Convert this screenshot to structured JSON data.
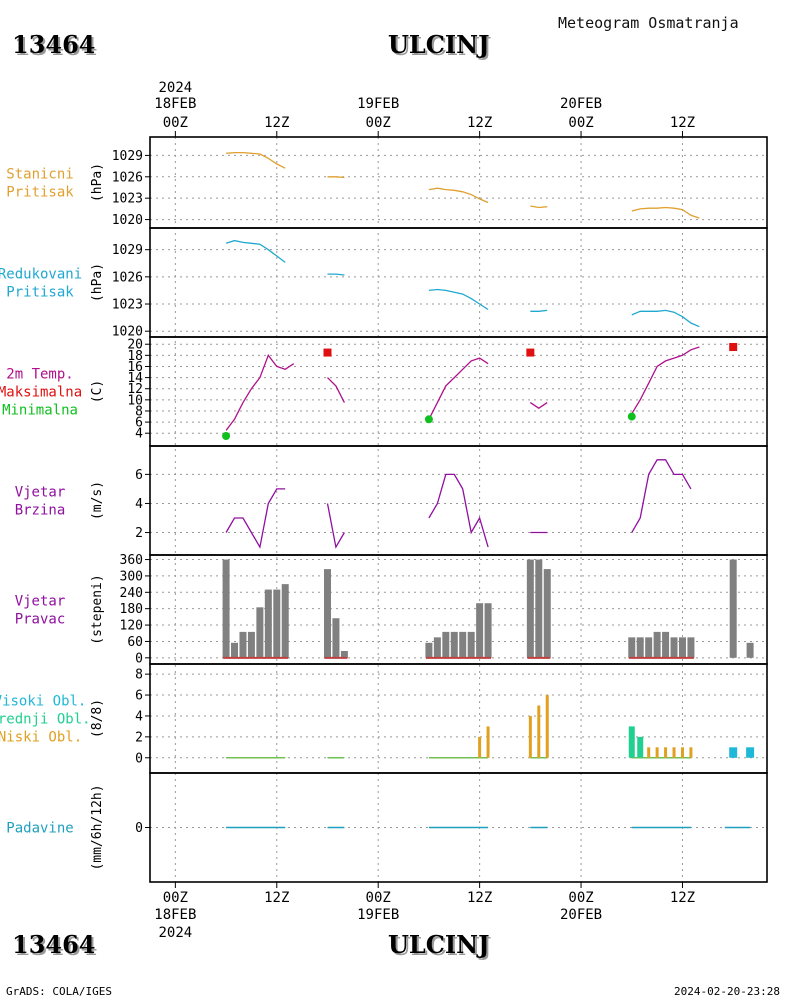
{
  "header": {
    "station_id": "13464",
    "city": "ULCINJ",
    "title": "Meteogram Osmatranja"
  },
  "footer": {
    "source": "GrADS: COLA/IGES",
    "timestamp": "2024-02-20-23:28"
  },
  "colors": {
    "pressure_station": "#e0a030",
    "pressure_reduced": "#20a8d0",
    "temp": "#b0108a",
    "tmax": "#e01010",
    "tmin": "#10c020",
    "wind": "#9010a0",
    "wind_dir_bar": "#808080",
    "wind_dir_base": "#c04040",
    "cloud_high": "#20b8d8",
    "cloud_mid": "#20d090",
    "cloud_low": "#e0a020",
    "precip": "#20a0c0"
  },
  "chart_data": {
    "type": "line",
    "time_axis": {
      "top_year": "2024",
      "top_dates": [
        {
          "label": "18FEB",
          "h": 0
        },
        {
          "label": "19FEB",
          "h": 24
        },
        {
          "label": "20FEB",
          "h": 48
        }
      ],
      "ticks": [
        {
          "label": "00Z",
          "h": 0
        },
        {
          "label": "12Z",
          "h": 12
        },
        {
          "label": "00Z",
          "h": 24
        },
        {
          "label": "12Z",
          "h": 36
        },
        {
          "label": "00Z",
          "h": 48
        },
        {
          "label": "12Z",
          "h": 60
        }
      ],
      "bottom_dates": [
        {
          "label": "18FEB",
          "h": 0
        },
        {
          "label": "19FEB",
          "h": 24
        },
        {
          "label": "20FEB",
          "h": 48
        }
      ],
      "bottom_year": "2024",
      "xlim": [
        -3,
        70
      ]
    },
    "panels": [
      {
        "id": "station_pressure",
        "labels": [
          "Stanicni",
          "Pritisak"
        ],
        "label_color": "pressure_station",
        "ylabel": "(hPa)",
        "yticks": [
          "1020",
          "1023",
          "1026",
          "1029"
        ],
        "ylim": [
          1019.8,
          1030.6
        ],
        "series": [
          {
            "color": "pressure_station",
            "segments": [
              [
                [
                  6,
                  1029.3
                ],
                [
                  7,
                  1029.4
                ],
                [
                  8,
                  1029.4
                ],
                [
                  9,
                  1029.3
                ],
                [
                  10,
                  1029.2
                ],
                [
                  11,
                  1028.6
                ],
                [
                  12,
                  1027.8
                ],
                [
                  13,
                  1027.2
                ]
              ],
              [
                [
                  18,
                  1026.0
                ],
                [
                  19,
                  1026.0
                ],
                [
                  20,
                  1025.9
                ]
              ],
              [
                [
                  30,
                  1024.2
                ],
                [
                  31,
                  1024.4
                ],
                [
                  32,
                  1024.2
                ],
                [
                  33,
                  1024.1
                ],
                [
                  34,
                  1023.9
                ],
                [
                  35,
                  1023.5
                ],
                [
                  36,
                  1022.9
                ],
                [
                  37,
                  1022.4
                ]
              ],
              [
                [
                  42,
                  1021.9
                ],
                [
                  43,
                  1021.7
                ],
                [
                  44,
                  1021.8
                ]
              ],
              [
                [
                  54,
                  1021.2
                ],
                [
                  55,
                  1021.5
                ],
                [
                  56,
                  1021.6
                ],
                [
                  57,
                  1021.6
                ],
                [
                  58,
                  1021.7
                ],
                [
                  59,
                  1021.6
                ],
                [
                  60,
                  1021.4
                ],
                [
                  61,
                  1020.6
                ],
                [
                  62,
                  1020.2
                ]
              ]
            ]
          }
        ]
      },
      {
        "id": "reduced_pressure",
        "labels": [
          "Redukovani",
          "Pritisak"
        ],
        "label_color": "pressure_reduced",
        "ylabel": "(hPa)",
        "yticks": [
          "1020",
          "1023",
          "1026",
          "1029"
        ],
        "ylim": [
          1019.8,
          1030.4
        ],
        "series": [
          {
            "color": "pressure_reduced",
            "segments": [
              [
                [
                  6,
                  1029.7
                ],
                [
                  7,
                  1030.0
                ],
                [
                  8,
                  1029.8
                ],
                [
                  9,
                  1029.7
                ],
                [
                  10,
                  1029.6
                ],
                [
                  11,
                  1029.0
                ],
                [
                  12,
                  1028.3
                ],
                [
                  13,
                  1027.6
                ]
              ],
              [
                [
                  18,
                  1026.3
                ],
                [
                  19,
                  1026.3
                ],
                [
                  20,
                  1026.2
                ]
              ],
              [
                [
                  30,
                  1024.5
                ],
                [
                  31,
                  1024.6
                ],
                [
                  32,
                  1024.5
                ],
                [
                  33,
                  1024.3
                ],
                [
                  34,
                  1024.1
                ],
                [
                  35,
                  1023.6
                ],
                [
                  36,
                  1023.0
                ],
                [
                  37,
                  1022.4
                ]
              ],
              [
                [
                  42,
                  1022.2
                ],
                [
                  43,
                  1022.2
                ],
                [
                  44,
                  1022.3
                ]
              ],
              [
                [
                  54,
                  1021.8
                ],
                [
                  55,
                  1022.2
                ],
                [
                  56,
                  1022.2
                ],
                [
                  57,
                  1022.2
                ],
                [
                  58,
                  1022.3
                ],
                [
                  59,
                  1022.1
                ],
                [
                  60,
                  1021.6
                ],
                [
                  61,
                  1020.9
                ],
                [
                  62,
                  1020.5
                ]
              ]
            ]
          }
        ]
      },
      {
        "id": "temperature",
        "labels": [
          "2m Temp.",
          "Maksimalna",
          "Minimalna"
        ],
        "label_colors": [
          "temp",
          "tmax",
          "tmin"
        ],
        "ylabel": "(C)",
        "yticks": [
          "4",
          "6",
          "8",
          "10",
          "12",
          "14",
          "16",
          "18",
          "20"
        ],
        "ylim": [
          2.6,
          20.4
        ],
        "series": [
          {
            "color": "temp",
            "segments": [
              [
                [
                  6,
                  4.5
                ],
                [
                  7,
                  6.5
                ],
                [
                  8,
                  9.5
                ],
                [
                  9,
                  12
                ],
                [
                  10,
                  14
                ],
                [
                  11,
                  18
                ],
                [
                  12,
                  16
                ],
                [
                  13,
                  15.5
                ],
                [
                  14,
                  16.5
                ]
              ],
              [
                [
                  18,
                  14
                ],
                [
                  19,
                  12.5
                ],
                [
                  20,
                  9.5
                ]
              ],
              [
                [
                  30,
                  6.5
                ],
                [
                  31,
                  9.5
                ],
                [
                  32,
                  12.5
                ],
                [
                  33,
                  14
                ],
                [
                  34,
                  15.5
                ],
                [
                  35,
                  17
                ],
                [
                  36,
                  17.5
                ],
                [
                  37,
                  16.5
                ]
              ],
              [
                [
                  42,
                  9.5
                ],
                [
                  43,
                  8.5
                ],
                [
                  44,
                  9.5
                ]
              ],
              [
                [
                  54,
                  7.5
                ],
                [
                  55,
                  10
                ],
                [
                  56,
                  13
                ],
                [
                  57,
                  16
                ],
                [
                  58,
                  17
                ],
                [
                  59,
                  17.5
                ],
                [
                  60,
                  18
                ],
                [
                  61,
                  19
                ],
                [
                  62,
                  19.5
                ]
              ]
            ]
          }
        ],
        "tmax": [
          [
            18,
            18.5
          ],
          [
            42,
            18.5
          ],
          [
            66,
            19.5
          ]
        ],
        "tmin": [
          [
            6,
            3.5
          ],
          [
            30,
            6.5
          ],
          [
            54,
            7
          ]
        ]
      },
      {
        "id": "wind_speed",
        "labels": [
          "Vjetar",
          "Brzina"
        ],
        "label_color": "wind",
        "ylabel": "(m/s)",
        "yticks": [
          "2",
          "4",
          "6"
        ],
        "ylim": [
          0.8,
          7.4
        ],
        "series": [
          {
            "color": "wind",
            "segments": [
              [
                [
                  6,
                  2
                ],
                [
                  7,
                  3
                ],
                [
                  8,
                  3
                ],
                [
                  9,
                  2
                ],
                [
                  10,
                  1
                ],
                [
                  11,
                  4
                ],
                [
                  12,
                  5
                ],
                [
                  13,
                  5
                ]
              ],
              [
                [
                  18,
                  4
                ],
                [
                  19,
                  1
                ],
                [
                  20,
                  2
                ]
              ],
              [
                [
                  30,
                  3
                ],
                [
                  31,
                  4
                ],
                [
                  32,
                  6
                ],
                [
                  33,
                  6
                ],
                [
                  34,
                  5
                ],
                [
                  35,
                  2
                ],
                [
                  36,
                  3
                ],
                [
                  37,
                  1
                ]
              ],
              [
                [
                  42,
                  2
                ],
                [
                  43,
                  2
                ],
                [
                  44,
                  2
                ]
              ],
              [
                [
                  54,
                  2
                ],
                [
                  55,
                  3
                ],
                [
                  56,
                  6
                ],
                [
                  57,
                  7
                ],
                [
                  58,
                  7
                ],
                [
                  59,
                  6
                ],
                [
                  60,
                  6
                ],
                [
                  61,
                  5
                ]
              ]
            ]
          }
        ]
      },
      {
        "id": "wind_direction",
        "labels": [
          "Vjetar",
          "Pravac"
        ],
        "label_color": "wind",
        "ylabel": "(stepeni)",
        "yticks": [
          "0",
          "60",
          "120",
          "180",
          "240",
          "300",
          "360"
        ],
        "ylim": [
          -8,
          362
        ],
        "bars": [
          [
            6,
            360
          ],
          [
            7,
            55
          ],
          [
            8,
            95
          ],
          [
            9,
            95
          ],
          [
            10,
            185
          ],
          [
            11,
            250
          ],
          [
            12,
            250
          ],
          [
            13,
            270
          ],
          [
            18,
            325
          ],
          [
            19,
            145
          ],
          [
            20,
            25
          ],
          [
            30,
            55
          ],
          [
            31,
            75
          ],
          [
            32,
            95
          ],
          [
            33,
            95
          ],
          [
            34,
            95
          ],
          [
            35,
            95
          ],
          [
            36,
            200
          ],
          [
            37,
            200
          ],
          [
            42,
            360
          ],
          [
            43,
            360
          ],
          [
            44,
            325
          ],
          [
            54,
            75
          ],
          [
            55,
            75
          ],
          [
            56,
            75
          ],
          [
            57,
            95
          ],
          [
            58,
            95
          ],
          [
            59,
            75
          ],
          [
            60,
            75
          ],
          [
            61,
            75
          ],
          [
            66,
            360
          ],
          [
            68,
            55
          ]
        ]
      },
      {
        "id": "clouds",
        "labels": [
          "Visoki Obl.",
          "Srednji Obl.",
          "Niski Obl."
        ],
        "label_colors": [
          "cloud_high",
          "cloud_mid",
          "cloud_low"
        ],
        "ylabel": "(8/8)",
        "yticks": [
          "0",
          "2",
          "4",
          "6",
          "8"
        ],
        "ylim": [
          -0.5,
          8.3
        ],
        "low": [
          [
            36,
            2
          ],
          [
            37,
            3
          ],
          [
            42,
            4
          ],
          [
            43,
            5
          ],
          [
            44,
            6
          ],
          [
            54,
            1
          ],
          [
            55,
            1
          ],
          [
            56,
            1
          ],
          [
            57,
            1
          ],
          [
            58,
            1
          ],
          [
            59,
            1
          ],
          [
            60,
            1
          ],
          [
            61,
            1
          ]
        ],
        "mid": [
          [
            54,
            3
          ],
          [
            55,
            2
          ]
        ],
        "high": [
          [
            66,
            1
          ],
          [
            68,
            1
          ]
        ],
        "zero_segments": [
          [
            6,
            13
          ],
          [
            18,
            20
          ],
          [
            30,
            37
          ],
          [
            42,
            44
          ],
          [
            54,
            61
          ]
        ]
      },
      {
        "id": "precipitation",
        "labels": [
          "Padavine"
        ],
        "label_color": "precip",
        "ylabel": "(mm/6h/12h)",
        "yticks": [
          "0"
        ],
        "ylim": [
          -2.5,
          2.5
        ],
        "zero_segments": [
          [
            6,
            13
          ],
          [
            18,
            20
          ],
          [
            30,
            37
          ],
          [
            42,
            44
          ],
          [
            54,
            61
          ],
          [
            65,
            68
          ]
        ]
      }
    ]
  }
}
